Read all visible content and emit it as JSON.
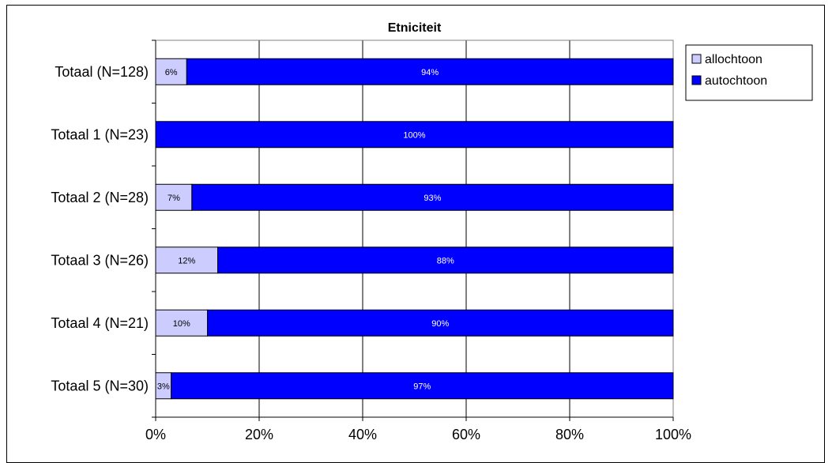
{
  "chart_data": {
    "type": "bar",
    "orientation": "horizontal",
    "stacked": true,
    "title": "Etniciteit",
    "categories": [
      "Totaal (N=128)",
      "Totaal 1 (N=23)",
      "Totaal 2 (N=28)",
      "Totaal 3 (N=26)",
      "Totaal 4 (N=21)",
      "Totaal 5 (N=30)"
    ],
    "series": [
      {
        "name": "allochtoon",
        "values": [
          6,
          0,
          7,
          12,
          10,
          3
        ],
        "labels": [
          "6%",
          "",
          "7%",
          "12%",
          "10%",
          "3%"
        ],
        "color": "#ccccff"
      },
      {
        "name": "autochtoon",
        "values": [
          94,
          100,
          93,
          88,
          90,
          97
        ],
        "labels": [
          "94%",
          "100%",
          "93%",
          "88%",
          "90%",
          "97%"
        ],
        "color": "#0000ff"
      }
    ],
    "xlim": [
      0,
      100
    ],
    "xticks": [
      0,
      20,
      40,
      60,
      80,
      100
    ],
    "xtick_labels": [
      "0%",
      "20%",
      "40%",
      "60%",
      "80%",
      "100%"
    ],
    "grid": true,
    "legend_position": "top-right"
  }
}
